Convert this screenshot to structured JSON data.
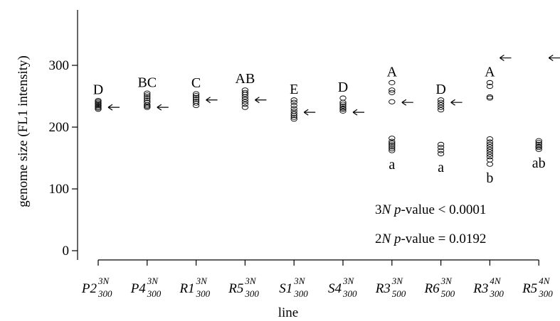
{
  "chart_data": {
    "type": "scatter",
    "xlabel": "line",
    "ylabel": "genome size (FL1 intensity)",
    "ylim": [
      0,
      340
    ],
    "yticks": [
      0,
      100,
      200,
      300
    ],
    "grid": false,
    "categories": [
      {
        "base": "P2",
        "sub": "300",
        "sup": "3N"
      },
      {
        "base": "P4",
        "sub": "300",
        "sup": "3N"
      },
      {
        "base": "R1",
        "sub": "300",
        "sup": "3N"
      },
      {
        "base": "R5",
        "sub": "300",
        "sup": "3N"
      },
      {
        "base": "S1",
        "sub": "300",
        "sup": "3N"
      },
      {
        "base": "S4",
        "sub": "300",
        "sup": "3N"
      },
      {
        "base": "R3",
        "sub": "500",
        "sup": "3N"
      },
      {
        "base": "R6",
        "sub": "500",
        "sup": "3N"
      },
      {
        "base": "R3",
        "sub": "300",
        "sup": "4N"
      },
      {
        "base": "R5",
        "sub": "300",
        "sup": "4N"
      }
    ],
    "points": [
      [
        229,
        231,
        233,
        235,
        237,
        239,
        241,
        243
      ],
      [
        232,
        234,
        236,
        240,
        243,
        246,
        249,
        252,
        255
      ],
      [
        235,
        239,
        242,
        245,
        248,
        251,
        254
      ],
      [
        232,
        237,
        241,
        245,
        249,
        253,
        256,
        260
      ],
      [
        213,
        216,
        219,
        222,
        226,
        230,
        235,
        240,
        244
      ],
      [
        226,
        229,
        231,
        234,
        237,
        240,
        247
      ],
      [
        241,
        256,
        260,
        272,
        162,
        165,
        168,
        171,
        174,
        177,
        182
      ],
      [
        228,
        232,
        236,
        240,
        244,
        157,
        162,
        167,
        172
      ],
      [
        247,
        249,
        266,
        272,
        140,
        147,
        152,
        156,
        160,
        164,
        168,
        172,
        176,
        181
      ],
      [
        164,
        167,
        169,
        172,
        175,
        178
      ]
    ],
    "arrows": [
      232,
      232,
      244,
      244,
      224,
      224,
      240,
      240,
      312,
      312
    ],
    "upper_group_labels": [
      {
        "label": "D",
        "value": 244
      },
      {
        "label": "BC",
        "value": 256
      },
      {
        "label": "C",
        "value": 255
      },
      {
        "label": "AB",
        "value": 262
      },
      {
        "label": "E",
        "value": 245
      },
      {
        "label": "D",
        "value": 248
      },
      {
        "label": "A",
        "value": 273
      },
      {
        "label": "D",
        "value": 245
      },
      {
        "label": "A",
        "value": 273
      },
      {
        "label": "",
        "value": 0
      }
    ],
    "lower_group_labels": [
      {
        "label": "",
        "value": 0
      },
      {
        "label": "",
        "value": 0
      },
      {
        "label": "",
        "value": 0
      },
      {
        "label": "",
        "value": 0
      },
      {
        "label": "",
        "value": 0
      },
      {
        "label": "",
        "value": 0
      },
      {
        "label": "a",
        "value": 160
      },
      {
        "label": "a",
        "value": 155
      },
      {
        "label": "b",
        "value": 138
      },
      {
        "label": "ab",
        "value": 162
      }
    ],
    "annotations": {
      "p3": {
        "prefix": "3",
        "italic": "N",
        "mid": " ",
        "italic2": "p",
        "suffix": "-value < 0.0001"
      },
      "p2": {
        "prefix": "2",
        "italic": "N",
        "mid": " ",
        "italic2": "p",
        "suffix": "-value = 0.0192"
      }
    }
  }
}
